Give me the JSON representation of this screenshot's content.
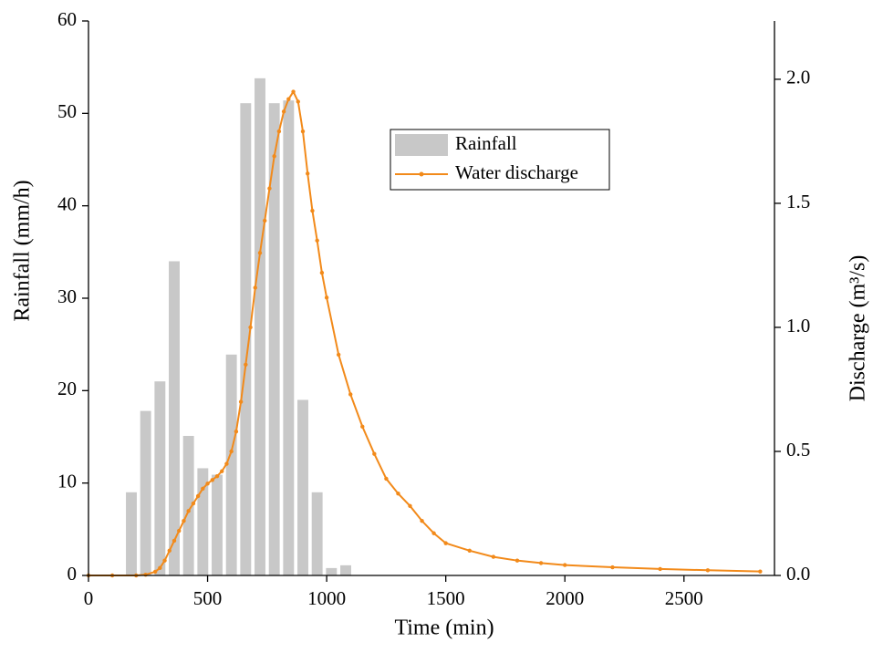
{
  "chart_data": {
    "type": "bar-line",
    "xlabel": "Time (min)",
    "ylabel": "Rainfall (mm/h)",
    "y2label": "Discharge (m³/s)",
    "xlim": [
      0,
      2880
    ],
    "xticks": [
      0,
      500,
      1000,
      1500,
      2000,
      2500
    ],
    "ylim": [
      0,
      60
    ],
    "yticks": [
      0,
      10,
      20,
      30,
      40,
      50,
      60
    ],
    "y2lim": [
      0,
      2.235
    ],
    "y2ticks": [
      {
        "value": 0,
        "label": "0.0"
      },
      0.5,
      {
        "value": 1,
        "label": "1.0"
      },
      1.5,
      {
        "value": 2,
        "label": "2.0"
      }
    ],
    "legend": "upper center",
    "series": [
      {
        "name": "Rainfall",
        "type": "bar",
        "color": "#c8c8c8",
        "x": [
          180,
          240,
          300,
          360,
          420,
          480,
          540,
          600,
          660,
          720,
          780,
          840,
          900,
          960,
          1020,
          1080
        ],
        "values": [
          9,
          17.8,
          21,
          34,
          15.1,
          11.6,
          10.9,
          23.9,
          51.1,
          53.8,
          51.1,
          51.4,
          19,
          9,
          0.8,
          1.1
        ]
      },
      {
        "name": "Water discharge",
        "type": "line",
        "axis": "y2",
        "color": "#f28a1a",
        "x": [
          0,
          100,
          200,
          240,
          280,
          300,
          320,
          340,
          360,
          380,
          400,
          420,
          440,
          460,
          480,
          500,
          520,
          540,
          560,
          580,
          600,
          620,
          640,
          660,
          680,
          700,
          720,
          740,
          760,
          780,
          800,
          820,
          840,
          860,
          880,
          900,
          920,
          940,
          960,
          980,
          1000,
          1050,
          1100,
          1150,
          1200,
          1250,
          1300,
          1350,
          1400,
          1450,
          1500,
          1600,
          1700,
          1800,
          1900,
          2000,
          2200,
          2400,
          2600,
          2820
        ],
        "values": [
          0,
          0,
          0,
          0.003,
          0.015,
          0.03,
          0.06,
          0.1,
          0.14,
          0.18,
          0.22,
          0.26,
          0.29,
          0.32,
          0.35,
          0.37,
          0.385,
          0.4,
          0.42,
          0.45,
          0.5,
          0.58,
          0.7,
          0.85,
          1.0,
          1.16,
          1.3,
          1.43,
          1.56,
          1.69,
          1.79,
          1.87,
          1.92,
          1.95,
          1.91,
          1.79,
          1.62,
          1.47,
          1.35,
          1.22,
          1.12,
          0.89,
          0.73,
          0.6,
          0.49,
          0.39,
          0.33,
          0.28,
          0.22,
          0.17,
          0.13,
          0.1,
          0.075,
          0.06,
          0.05,
          0.042,
          0.033,
          0.026,
          0.021,
          0.016
        ]
      }
    ]
  }
}
